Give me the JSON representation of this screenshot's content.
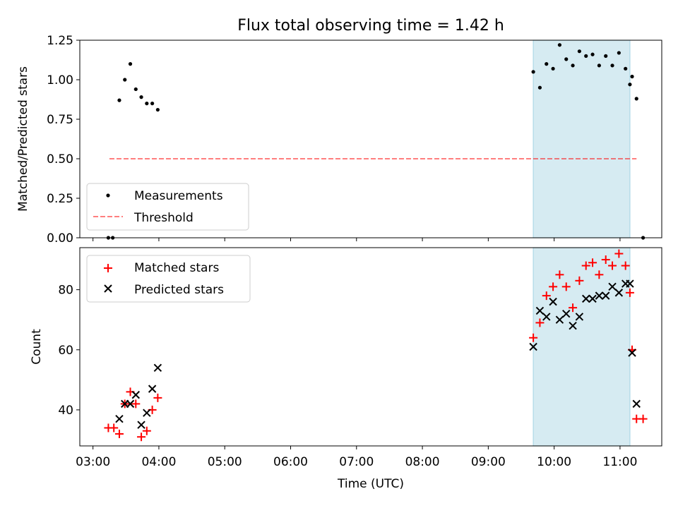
{
  "chart_data": {
    "title": "Flux total observing time = 1.42 h",
    "xlabel": "Time (UTC)",
    "xlim": [
      "02:48",
      "11:38"
    ],
    "x_ticks": [
      "03:00",
      "04:00",
      "05:00",
      "06:00",
      "07:00",
      "08:00",
      "09:00",
      "10:00",
      "11:00"
    ],
    "highlight_span": [
      "09:41",
      "11:09"
    ],
    "colors": {
      "highlight": "#add8e6",
      "measurement": "#000000",
      "threshold": "#ff0000",
      "matched": "#ff0000",
      "predicted": "#000000"
    },
    "panels": [
      {
        "type": "scatter",
        "ylabel": "Matched/Predicted stars",
        "ylim": [
          0,
          1.25
        ],
        "y_ticks": [
          "0.00",
          "0.25",
          "0.50",
          "0.75",
          "1.00",
          "1.25"
        ],
        "legend": {
          "placement": "lower-left",
          "entries": [
            "Measurements",
            "Threshold"
          ]
        },
        "threshold": {
          "name": "Threshold",
          "y": 0.5,
          "x_range": [
            "03:15",
            "11:15"
          ]
        },
        "series": [
          {
            "name": "Measurements",
            "points": [
              [
                "03:14",
                0
              ],
              [
                "03:18",
                0
              ],
              [
                "03:24",
                0.87
              ],
              [
                "03:29",
                1.0
              ],
              [
                "03:34",
                1.1
              ],
              [
                "03:39",
                0.94
              ],
              [
                "03:44",
                0.89
              ],
              [
                "03:49",
                0.85
              ],
              [
                "03:54",
                0.85
              ],
              [
                "03:59",
                0.81
              ],
              [
                "09:41",
                1.05
              ],
              [
                "09:47",
                0.95
              ],
              [
                "09:53",
                1.1
              ],
              [
                "09:59",
                1.07
              ],
              [
                "10:05",
                1.22
              ],
              [
                "10:11",
                1.13
              ],
              [
                "10:17",
                1.09
              ],
              [
                "10:23",
                1.18
              ],
              [
                "10:29",
                1.15
              ],
              [
                "10:35",
                1.16
              ],
              [
                "10:41",
                1.09
              ],
              [
                "10:47",
                1.15
              ],
              [
                "10:53",
                1.09
              ],
              [
                "10:59",
                1.17
              ],
              [
                "11:05",
                1.07
              ],
              [
                "11:09",
                0.97
              ],
              [
                "11:11",
                1.02
              ],
              [
                "11:15",
                0.88
              ],
              [
                "11:21",
                0
              ]
            ]
          }
        ]
      },
      {
        "type": "scatter",
        "ylabel": "Count",
        "ylim": [
          28,
          94
        ],
        "y_ticks": [
          "40",
          "60",
          "80"
        ],
        "legend": {
          "placement": "upper-left",
          "entries": [
            "Matched stars",
            "Predicted stars"
          ]
        },
        "series": [
          {
            "name": "Matched stars",
            "marker": "+",
            "points": [
              [
                "03:14",
                34
              ],
              [
                "03:19",
                34
              ],
              [
                "03:24",
                32
              ],
              [
                "03:29",
                42
              ],
              [
                "03:34",
                46
              ],
              [
                "03:39",
                42
              ],
              [
                "03:44",
                31
              ],
              [
                "03:49",
                33
              ],
              [
                "03:54",
                40
              ],
              [
                "03:59",
                44
              ],
              [
                "09:41",
                64
              ],
              [
                "09:47",
                69
              ],
              [
                "09:53",
                78
              ],
              [
                "09:59",
                81
              ],
              [
                "10:05",
                85
              ],
              [
                "10:11",
                81
              ],
              [
                "10:17",
                74
              ],
              [
                "10:23",
                83
              ],
              [
                "10:29",
                88
              ],
              [
                "10:35",
                89
              ],
              [
                "10:41",
                85
              ],
              [
                "10:47",
                90
              ],
              [
                "10:53",
                88
              ],
              [
                "10:59",
                92
              ],
              [
                "11:05",
                88
              ],
              [
                "11:09",
                79
              ],
              [
                "11:11",
                60
              ],
              [
                "11:15",
                37
              ],
              [
                "11:21",
                37
              ]
            ]
          },
          {
            "name": "Predicted stars",
            "marker": "x",
            "points": [
              [
                "03:24",
                37
              ],
              [
                "03:29",
                42
              ],
              [
                "03:34",
                42
              ],
              [
                "03:39",
                45
              ],
              [
                "03:44",
                35
              ],
              [
                "03:49",
                39
              ],
              [
                "03:54",
                47
              ],
              [
                "03:59",
                54
              ],
              [
                "09:41",
                61
              ],
              [
                "09:47",
                73
              ],
              [
                "09:53",
                71
              ],
              [
                "09:59",
                76
              ],
              [
                "10:05",
                70
              ],
              [
                "10:11",
                72
              ],
              [
                "10:17",
                68
              ],
              [
                "10:23",
                71
              ],
              [
                "10:29",
                77
              ],
              [
                "10:35",
                77
              ],
              [
                "10:41",
                78
              ],
              [
                "10:47",
                78
              ],
              [
                "10:53",
                81
              ],
              [
                "10:59",
                79
              ],
              [
                "11:05",
                82
              ],
              [
                "11:09",
                82
              ],
              [
                "11:11",
                59
              ],
              [
                "11:15",
                42
              ]
            ]
          }
        ]
      }
    ]
  }
}
